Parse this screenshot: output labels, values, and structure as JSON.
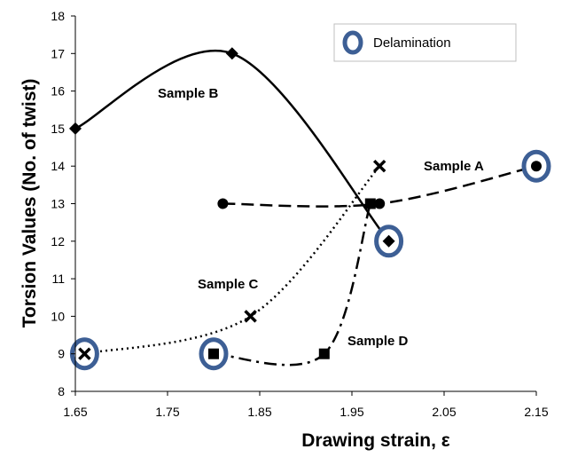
{
  "chart_data": {
    "type": "scatter",
    "xlabel": "Drawing strain, ε",
    "ylabel": "Torsion Values (No. of twist)",
    "xlim": [
      1.65,
      2.15
    ],
    "ylim": [
      8,
      18
    ],
    "x_ticks": [
      "1.65",
      "1.75",
      "1.85",
      "1.95",
      "2.05",
      "2.15"
    ],
    "y_ticks": [
      "8",
      "9",
      "10",
      "11",
      "12",
      "13",
      "14",
      "15",
      "16",
      "17",
      "18"
    ],
    "grid": false,
    "legend": {
      "label": "Delamination",
      "placement": "top-right",
      "marker": "circle-ring"
    },
    "series": [
      {
        "name": "Sample A",
        "marker": "circle",
        "line": "dashed",
        "points": [
          [
            1.81,
            13
          ],
          [
            1.98,
            13
          ],
          [
            2.15,
            14
          ]
        ],
        "delamination": [
          [
            2.15,
            14
          ]
        ]
      },
      {
        "name": "Sample B",
        "marker": "diamond",
        "line": "solid",
        "points": [
          [
            1.65,
            15
          ],
          [
            1.82,
            17
          ],
          [
            1.99,
            12
          ]
        ],
        "delamination": [
          [
            1.99,
            12
          ]
        ]
      },
      {
        "name": "Sample C",
        "marker": "x",
        "line": "dotted",
        "points": [
          [
            1.66,
            9
          ],
          [
            1.84,
            10
          ],
          [
            1.98,
            14
          ]
        ],
        "delamination": [
          [
            1.66,
            9
          ]
        ]
      },
      {
        "name": "Sample D",
        "marker": "square",
        "line": "dash-dot",
        "points": [
          [
            1.8,
            9
          ],
          [
            1.92,
            9
          ],
          [
            1.97,
            13
          ]
        ],
        "delamination": [
          [
            1.8,
            9
          ]
        ]
      }
    ],
    "colors": {
      "series": "#000000",
      "ring": "#3d5f95",
      "ring_fill": "#ffffff"
    }
  }
}
